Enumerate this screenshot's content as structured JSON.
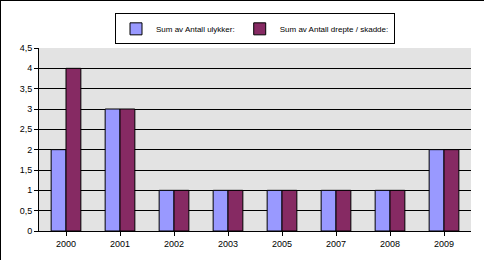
{
  "chart_data": {
    "type": "bar",
    "categories": [
      "2000",
      "2001",
      "2002",
      "2003",
      "2005",
      "2007",
      "2008",
      "2009"
    ],
    "series": [
      {
        "name": "Sum av Antall ulykker:",
        "color": "#9999ff",
        "values": [
          2,
          3,
          1,
          1,
          1,
          1,
          1,
          2
        ]
      },
      {
        "name": "Sum av Antall drepte / skadde:",
        "color": "#862a63",
        "values": [
          4,
          3,
          1,
          1,
          1,
          1,
          1,
          2
        ]
      }
    ],
    "ylim": [
      0,
      4.5
    ],
    "yticks": [
      0,
      {
        "value": 0.5,
        "label": "0,5"
      },
      1,
      {
        "value": 1.5,
        "label": "1,5"
      },
      2,
      {
        "value": 2.5,
        "label": "2,5"
      },
      3,
      {
        "value": 3.5,
        "label": "3,5"
      },
      4,
      {
        "value": 4.5,
        "label": "4,5"
      }
    ],
    "grid": true,
    "legend": "top"
  }
}
